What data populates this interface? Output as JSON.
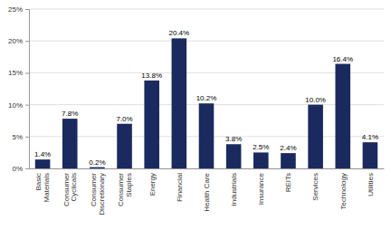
{
  "chart_data": {
    "type": "bar",
    "categories": [
      "Basic\nMaterials",
      "Consumer\nCyclicals",
      "Consumer\nDiscretionary",
      "Consumer\nStaples",
      "Energy",
      "Financial",
      "Health Care",
      "Industrials",
      "Insurance",
      "REITs",
      "Services",
      "Technology",
      "Utilities"
    ],
    "values": [
      1.4,
      7.8,
      0.2,
      7.0,
      13.8,
      20.4,
      10.2,
      3.8,
      2.5,
      2.4,
      10.0,
      16.4,
      4.1
    ],
    "value_labels": [
      "1.4%",
      "7.8%",
      "0.2%",
      "7.0%",
      "13.8%",
      "20.4%",
      "10.2%",
      "3.8%",
      "2.5%",
      "2.4%",
      "10.0%",
      "16.4%",
      "4.1%"
    ],
    "data_labels": true,
    "color": "#1a2a5e",
    "ylim": [
      0,
      25
    ],
    "yticks": [
      {
        "value": 0,
        "label": "0%"
      },
      {
        "value": 5,
        "label": "5%"
      },
      {
        "value": 10,
        "label": "10%"
      },
      {
        "value": 15,
        "label": "15%"
      },
      {
        "value": 20,
        "label": "20%"
      },
      {
        "value": 25,
        "label": "25%"
      }
    ],
    "grid": true
  }
}
